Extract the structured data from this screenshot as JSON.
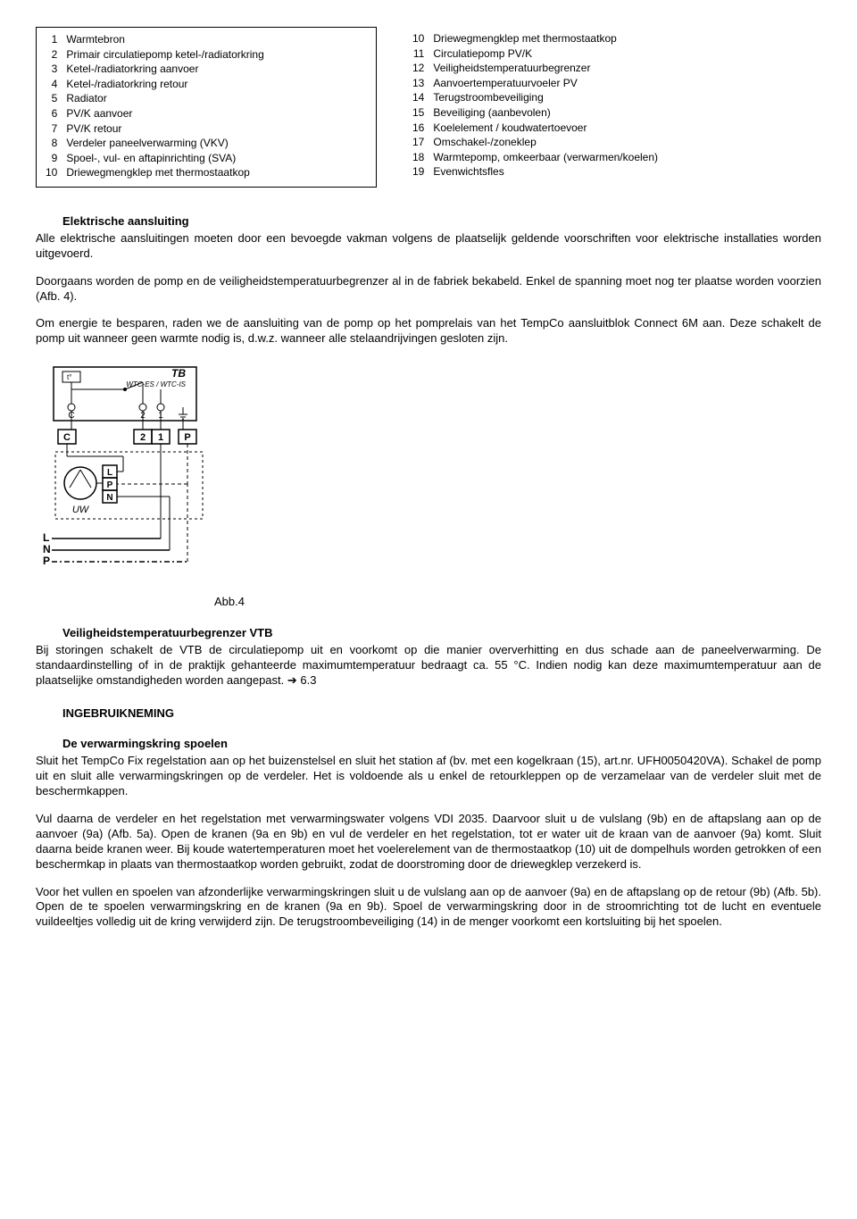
{
  "legend_left": [
    {
      "n": "1",
      "t": "Warmtebron"
    },
    {
      "n": "2",
      "t": "Primair circulatiepomp ketel-/radiatorkring"
    },
    {
      "n": "3",
      "t": "Ketel-/radiatorkring aanvoer"
    },
    {
      "n": "4",
      "t": "Ketel-/radiatorkring retour"
    },
    {
      "n": "5",
      "t": "Radiator"
    },
    {
      "n": "6",
      "t": "PV/K aanvoer"
    },
    {
      "n": "7",
      "t": "PV/K retour"
    },
    {
      "n": "8",
      "t": "Verdeler paneelverwarming (VKV)"
    },
    {
      "n": "9",
      "t": "Spoel-, vul- en aftapinrichting (SVA)"
    },
    {
      "n": "10",
      "t": "Driewegmengklep met thermostaatkop"
    }
  ],
  "legend_right": [
    {
      "n": "10",
      "t": "Driewegmengklep met thermostaatkop"
    },
    {
      "n": "11",
      "t": "Circulatiepomp PV/K"
    },
    {
      "n": "12",
      "t": "Veiligheidstemperatuurbegrenzer"
    },
    {
      "n": "13",
      "t": "Aanvoertemperatuurvoeler PV"
    },
    {
      "n": "14",
      "t": "Terugstroombeveiliging"
    },
    {
      "n": "15",
      "t": "Beveiliging (aanbevolen)"
    },
    {
      "n": "16",
      "t": "Koelelement / koudwatertoevoer"
    },
    {
      "n": "17",
      "t": "Omschakel-/zoneklep"
    },
    {
      "n": "18",
      "t": "Warmtepomp, omkeerbaar (verwarmen/koelen)"
    },
    {
      "n": "19",
      "t": "Evenwichtsfles"
    }
  ],
  "h_elektrische": "Elektrische aansluiting",
  "p1": "Alle elektrische aansluitingen moeten door een bevoegde vakman volgens de plaatselijk geldende voorschriften voor elektrische installaties worden uitgevoerd.",
  "p2": "Doorgaans worden de pomp en de veiligheidstemperatuurbegrenzer al in de fabriek bekabeld. Enkel de spanning moet nog ter plaatse worden voorzien (Afb. 4).",
  "p3": "Om energie te besparen, raden we de aansluiting van de pomp op het pomprelais van het TempCo aansluitblok Connect 6M aan. Deze schakelt de pomp uit wanneer geen warmte nodig is, d.w.z. wanneer alle stelaandrijvingen gesloten zijn.",
  "diagram": {
    "tb_label": "TB",
    "tb_sub": "WTC-ES / WTC-IS",
    "C": "C",
    "two": "2",
    "one": "1",
    "P": "P",
    "L": "L",
    "Pm": "P",
    "N": "N",
    "UW": "UW",
    "side_L": "L",
    "side_N": "N",
    "side_P": "P",
    "c_small": "C",
    "two_s": "2",
    "one_s": "1"
  },
  "caption4": "Abb.4",
  "h_vtb": "Veiligheidstemperatuurbegrenzer VTB",
  "p4": "Bij storingen schakelt de VTB de circulatiepomp uit en voorkomt op die manier oververhitting en dus schade aan de paneelverwarming. De standaardinstelling of in de praktijk gehanteerde maximumtemperatuur bedraagt ca. 55 °C. Indien nodig kan deze maximumtemperatuur aan de plaatselijke omstandigheden worden aangepast. ➔ 6.3",
  "h_ingebruik": "INGEBRUIKNEMING",
  "h_spoelen": "De verwarmingskring spoelen",
  "p5": "Sluit het TempCo Fix regelstation aan op het buizenstelsel en sluit het station af (bv. met een kogelkraan (15), art.nr. UFH0050420VA). Schakel de pomp uit en sluit alle verwarmingskringen op de verdeler. Het is voldoende als u enkel de retourkleppen op de verzamelaar van de verdeler sluit met de beschermkappen.",
  "p6": "Vul daarna de verdeler en het regelstation met verwarmingswater volgens VDI 2035. Daarvoor sluit u de vulslang (9b) en de aftapslang aan op de aanvoer (9a) (Afb. 5a). Open de kranen (9a en 9b) en vul de verdeler en het regelstation, tot er water uit de kraan van de aanvoer (9a) komt. Sluit daarna beide kranen weer. Bij koude watertemperaturen moet het voelerelement van de thermostaatkop (10) uit de dompelhuls worden getrokken of een beschermkap in plaats van thermostaatkop worden gebruikt, zodat de doorstroming door de driewegklep verzekerd is.",
  "p7": "Voor het vullen en spoelen van afzonderlijke verwarmingskringen sluit u de vulslang aan op de aanvoer (9a) en de aftapslang op de retour (9b) (Afb. 5b). Open de te spoelen verwarmingskring en de kranen (9a en 9b). Spoel de verwarmingskring door in de stroomrichting tot de lucht en eventuele vuildeeltjes volledig uit de kring verwijderd zijn. De terugstroombeveiliging (14) in de menger voorkomt een kortsluiting bij het spoelen."
}
